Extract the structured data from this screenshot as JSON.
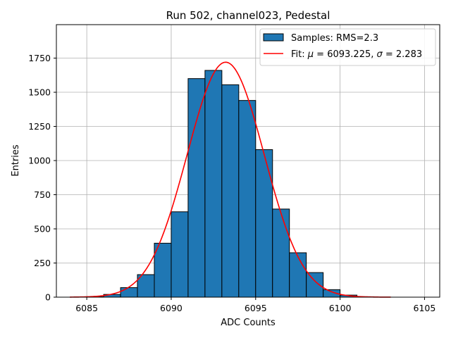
{
  "chart_data": {
    "type": "bar",
    "title": "Run 502, channel023, Pedestal",
    "xlabel": "ADC Counts",
    "ylabel": "Entries",
    "xlim": [
      6083.2,
      6105.9
    ],
    "ylim": [
      0,
      1995
    ],
    "xticks": [
      6085,
      6090,
      6095,
      6100,
      6105
    ],
    "yticks": [
      0,
      250,
      500,
      750,
      1000,
      1250,
      1500,
      1750
    ],
    "grid": true,
    "legend_position": "top-right",
    "bin_width": 1,
    "bins": [
      6084,
      6085,
      6086,
      6087,
      6088,
      6089,
      6090,
      6091,
      6092,
      6093,
      6094,
      6095,
      6096,
      6097,
      6098,
      6099,
      6100,
      6101,
      6102,
      6103
    ],
    "counts": [
      0,
      3,
      20,
      70,
      165,
      395,
      625,
      1600,
      1660,
      1555,
      1440,
      1080,
      645,
      325,
      180,
      55,
      15,
      3,
      0,
      0
    ],
    "series": [
      {
        "name": "Samples: RMS=2.3",
        "kind": "histogram",
        "color": "#1f77b4"
      },
      {
        "name": "Fit: μ = 6093.225, σ = 2.283",
        "kind": "gaussian",
        "color": "#ff0000",
        "mu": 6093.225,
        "sigma": 2.283,
        "amplitude": 1720,
        "x_range": [
          6084,
          6103
        ]
      }
    ],
    "legend": {
      "hist_label": "Samples: RMS=2.3",
      "fit_label_prefix": "Fit: ",
      "mu_symbol": "μ",
      "fit_label_mid": " = 6093.225, ",
      "sigma_symbol": "σ",
      "fit_label_suffix": " = 2.283"
    }
  }
}
